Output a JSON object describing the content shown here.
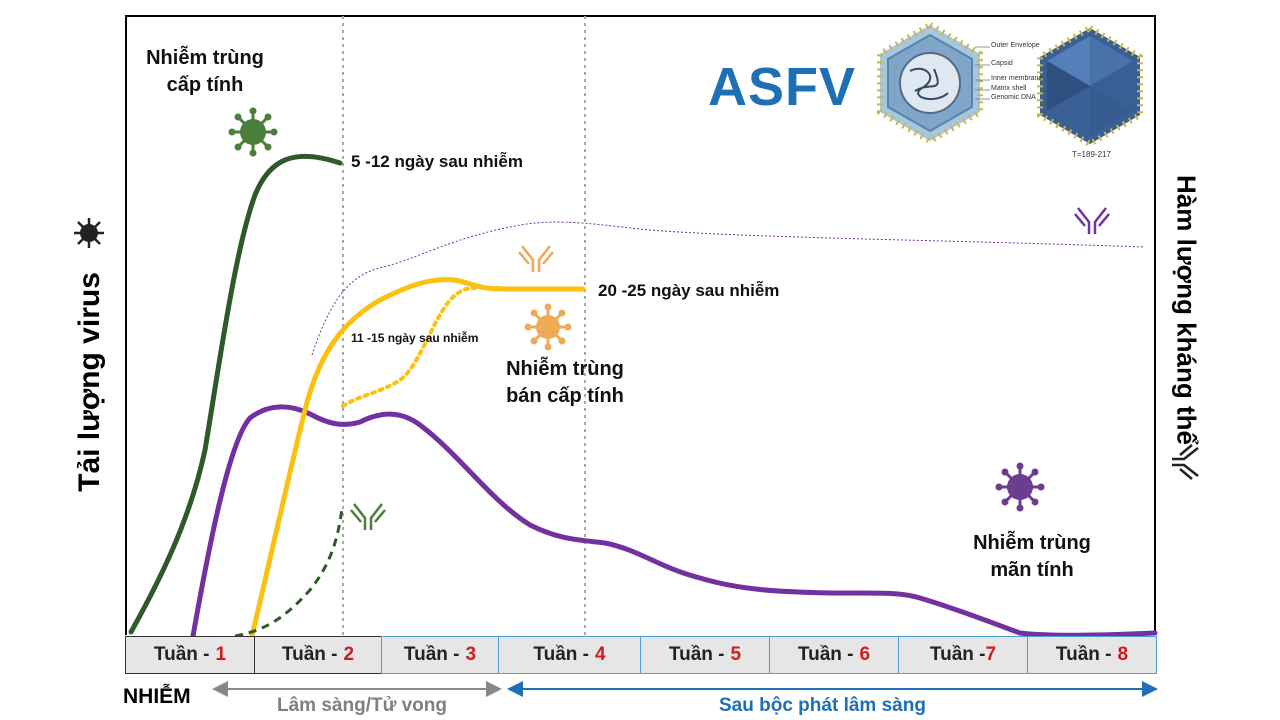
{
  "title": "ASFV",
  "virion_caption": "T=189-217",
  "virion_legend": [
    "Outer Envelope",
    "Capsid",
    "Inner membrane",
    "Matrix shell",
    "Genomic DNA"
  ],
  "y_axis_left": "Tải lượng virus",
  "y_axis_right": "Hàm lượng kháng thể",
  "labels": {
    "acute_title_1": "Nhiễm trùng",
    "acute_title_2": "cấp tính",
    "acute_time": "5 -12 ngày sau nhiễm",
    "subacute_time_a": "11 -15 ngày sau nhiễm",
    "subacute_time_b": "20 -25 ngày sau nhiễm",
    "subacute_title_1": "Nhiễm trùng",
    "subacute_title_2": "bán cấp tính",
    "chronic_title_1": "Nhiễm trùng",
    "chronic_title_2": "mãn tính"
  },
  "weeks": [
    {
      "word": "Tuần -",
      "num": "1"
    },
    {
      "word": "Tuần -",
      "num": "2"
    },
    {
      "word": "Tuần - ",
      "num": "3"
    },
    {
      "word": "Tuần -",
      "num": "4"
    },
    {
      "word": "Tuần -",
      "num": "5"
    },
    {
      "word": "Tuần -",
      "num": "6"
    },
    {
      "word": "Tuần -",
      "num": "7"
    },
    {
      "word": "Tuần -",
      "num": "8"
    }
  ],
  "footer": {
    "infection": "NHIỄM",
    "clinical": "Lâm sàng/Tử vong",
    "post_clinical": "Sau bộc phát lâm sàng"
  },
  "colors": {
    "acute": "#2e5a2a",
    "subacute": "#fcc10f",
    "chronic": "#7330a0",
    "title": "#1f6fb5",
    "week_number": "#d01c1c",
    "clinical_arrow": "#888888",
    "post_arrow": "#1f6fb5"
  }
}
